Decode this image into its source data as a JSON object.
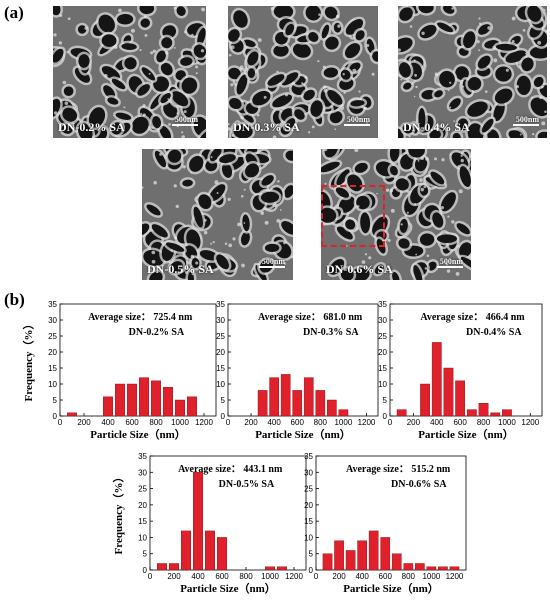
{
  "panel_a": "(a)",
  "panel_b": "(b)",
  "sem_images": [
    {
      "label": "DN-0.2%  SA",
      "scale": "500nm"
    },
    {
      "label": "DN-0.3%  SA",
      "scale": "500nm"
    },
    {
      "label": "DN-0.4%  SA",
      "scale": "500nm"
    },
    {
      "label": "DN-0.5%  SA",
      "scale": "500nm"
    },
    {
      "label": "DN-0.6%  SA",
      "scale": "500nm"
    }
  ],
  "chart_data": [
    {
      "type": "bar",
      "sample": "DN-0.2%  SA",
      "avg_text": "Average size： 725.4 nm",
      "x": [
        100,
        200,
        300,
        400,
        500,
        600,
        700,
        800,
        900,
        1000,
        1100,
        1200
      ],
      "values": [
        1,
        0,
        0,
        6,
        10,
        10,
        12,
        11,
        9,
        5,
        6,
        0
      ],
      "xlabel": "Particle Size（nm）",
      "ylabel": "Frequency（%）",
      "xlim": [
        0,
        1300
      ],
      "ylim": [
        0,
        35
      ],
      "xticks": [
        0,
        200,
        400,
        600,
        800,
        1000,
        1200
      ],
      "yticks": [
        0,
        5,
        10,
        15,
        20,
        25,
        30,
        35
      ],
      "color": "#e0202a"
    },
    {
      "type": "bar",
      "sample": "DN-0.3%  SA",
      "avg_text": "Average size： 681.0 nm",
      "x": [
        300,
        400,
        500,
        600,
        700,
        800,
        900,
        1000,
        1100
      ],
      "values": [
        8,
        12,
        13,
        8,
        12,
        8,
        5,
        2,
        0
      ],
      "xlabel": "Particle Size（nm）",
      "ylabel": "",
      "xlim": [
        0,
        1300
      ],
      "ylim": [
        0,
        35
      ],
      "xticks": [
        0,
        200,
        400,
        600,
        800,
        1000,
        1200
      ],
      "yticks": [
        0,
        5,
        10,
        15,
        20,
        25,
        30,
        35
      ],
      "color": "#e0202a"
    },
    {
      "type": "bar",
      "sample": "DN-0.4%  SA",
      "avg_text": "Average size： 466.4 nm",
      "x": [
        100,
        300,
        400,
        500,
        600,
        700,
        800,
        900,
        1000
      ],
      "values": [
        2,
        10,
        23,
        15,
        11,
        2,
        4,
        1,
        2
      ],
      "xlabel": "Particle Size（nm）",
      "ylabel": "",
      "xlim": [
        0,
        1300
      ],
      "ylim": [
        0,
        35
      ],
      "xticks": [
        0,
        200,
        400,
        600,
        800,
        1000,
        1200
      ],
      "yticks": [
        0,
        5,
        10,
        15,
        20,
        25,
        30,
        35
      ],
      "color": "#e0202a"
    },
    {
      "type": "bar",
      "sample": "DN-0.5%  SA",
      "avg_text": "Average size： 443.1 nm",
      "x": [
        100,
        200,
        300,
        400,
        500,
        600,
        1000,
        1100
      ],
      "values": [
        2,
        2,
        12,
        30,
        12,
        10,
        1,
        1
      ],
      "xlabel": "Particle Size（nm）",
      "ylabel": "Frequency（%）",
      "xlim": [
        0,
        1300
      ],
      "ylim": [
        0,
        35
      ],
      "xticks": [
        0,
        200,
        400,
        600,
        800,
        1000,
        1200
      ],
      "yticks": [
        0,
        5,
        10,
        15,
        20,
        25,
        30,
        35
      ],
      "color": "#e0202a"
    },
    {
      "type": "bar",
      "sample": "DN-0.6%  SA",
      "avg_text": "Average size： 515.2 nm",
      "x": [
        100,
        200,
        300,
        400,
        500,
        600,
        700,
        800,
        900,
        1000,
        1100,
        1200
      ],
      "values": [
        5,
        9,
        6,
        9,
        12,
        10,
        5,
        2,
        2,
        1,
        1,
        1
      ],
      "xlabel": "Particle Size（nm）",
      "ylabel": "",
      "xlim": [
        0,
        1300
      ],
      "ylim": [
        0,
        35
      ],
      "xticks": [
        0,
        200,
        400,
        600,
        800,
        1000,
        1200
      ],
      "yticks": [
        0,
        5,
        10,
        15,
        20,
        25,
        30,
        35
      ],
      "color": "#e0202a"
    }
  ]
}
